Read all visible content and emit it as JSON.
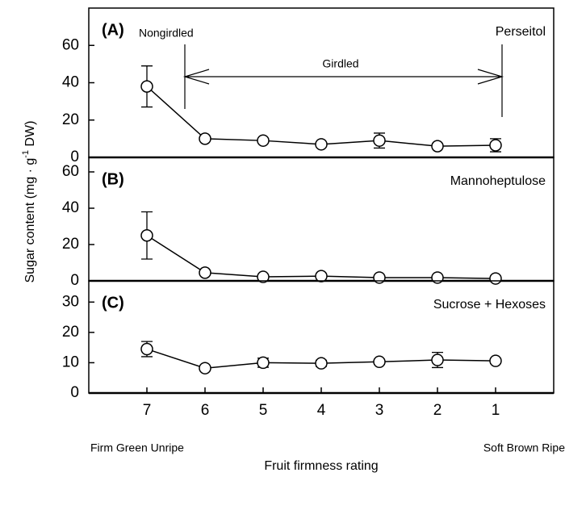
{
  "chart_data": [
    {
      "type": "line",
      "panel_label": "(A)",
      "series_label": "Perseitol",
      "annotations": [
        "Nongirdled",
        "Girdled"
      ],
      "x": [
        7,
        6,
        5,
        4,
        3,
        2,
        1
      ],
      "values": [
        38,
        10,
        9,
        7,
        9,
        6,
        6.5
      ],
      "errors": [
        11,
        1,
        1,
        1,
        4,
        1,
        3.5
      ],
      "ylim": [
        0,
        80
      ],
      "yticks": [
        0,
        20,
        40,
        60
      ],
      "color": "#000000"
    },
    {
      "type": "line",
      "panel_label": "(B)",
      "series_label": "Mannoheptulose",
      "x": [
        7,
        6,
        5,
        4,
        3,
        2,
        1
      ],
      "values": [
        25,
        4.5,
        2.2,
        2.6,
        1.8,
        1.8,
        1.3
      ],
      "errors": [
        13,
        1,
        0.5,
        0.5,
        0.5,
        0.5,
        0.5
      ],
      "ylim": [
        0,
        68
      ],
      "yticks": [
        0,
        20,
        40,
        60
      ],
      "color": "#000000"
    },
    {
      "type": "line",
      "panel_label": "(C)",
      "series_label": "Sucrose + Hexoses",
      "x": [
        7,
        6,
        5,
        4,
        3,
        2,
        1
      ],
      "values": [
        14.5,
        8.2,
        10,
        9.8,
        10.3,
        10.9,
        10.6
      ],
      "errors": [
        2.5,
        0.5,
        1.5,
        1,
        0.8,
        2.5,
        0.8
      ],
      "ylim": [
        0,
        37
      ],
      "yticks": [
        0,
        10,
        20,
        30
      ],
      "color": "#000000"
    }
  ],
  "x_axis": {
    "xlim": [
      8,
      0
    ],
    "xticks": [
      7,
      6,
      5,
      4,
      3,
      2,
      1
    ],
    "label": "Fruit firmness rating",
    "left_note": "Firm Green Unripe",
    "right_note": "Soft Brown Ripe"
  },
  "y_label": {
    "before": "Sugar content (mg · g",
    "sup": "-1",
    "after": " DW)"
  }
}
